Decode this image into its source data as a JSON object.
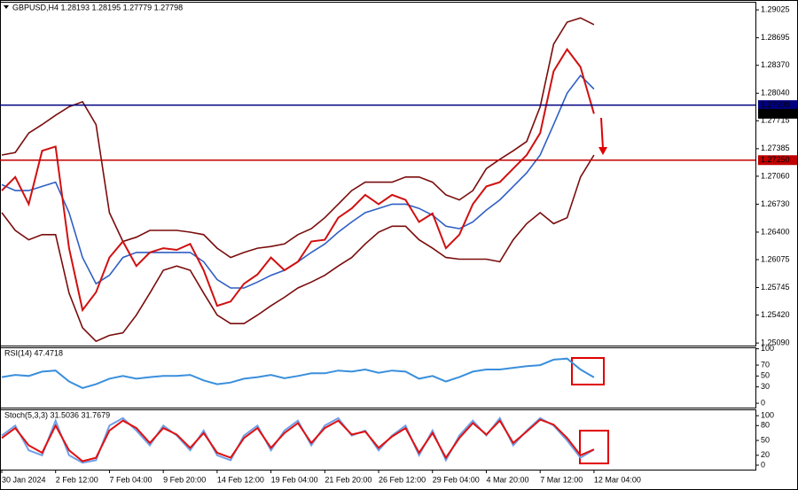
{
  "chart_data": [
    {
      "type": "line",
      "title": "GBPUSD,H4  1.28193 1.28195 1.27779 1.27798",
      "categories": [
        "30 Jan 2024",
        null,
        null,
        null,
        "2 Feb 12:00",
        null,
        null,
        null,
        "7 Feb 04:00",
        null,
        null,
        null,
        "9 Feb 20:00",
        null,
        null,
        null,
        "14 Feb 12:00",
        null,
        null,
        null,
        "19 Feb 04:00",
        null,
        null,
        null,
        "21 Feb 20:00",
        null,
        null,
        null,
        "26 Feb 12:00",
        null,
        null,
        null,
        "29 Feb 04:00",
        null,
        null,
        null,
        "4 Mar 20:00",
        null,
        null,
        null,
        "7 Mar 12:00",
        null,
        null,
        null,
        "12 Mar 04:00"
      ],
      "series": [
        {
          "name": "Upper band",
          "color": "#7a0c0c",
          "values": [
            1.2731,
            1.2734,
            1.2757,
            1.2767,
            1.2778,
            1.2788,
            1.2794,
            1.2767,
            1.2663,
            1.2629,
            1.2634,
            1.2642,
            1.2642,
            1.2642,
            1.264,
            1.2637,
            1.2621,
            1.261,
            1.2616,
            1.2621,
            1.2623,
            1.2626,
            1.2637,
            1.2644,
            1.2657,
            1.2673,
            1.2689,
            1.2699,
            1.2699,
            1.2699,
            1.2705,
            1.2705,
            1.2699,
            1.2684,
            1.2678,
            1.2689,
            1.2715,
            1.2726,
            1.2736,
            1.2747,
            1.2788,
            1.2862,
            1.2888,
            1.2893,
            1.2885
          ]
        },
        {
          "name": "Lower band",
          "color": "#7a0c0c",
          "values": [
            1.2663,
            1.2642,
            1.2631,
            1.2637,
            1.2637,
            1.2568,
            1.2527,
            1.2511,
            1.2518,
            1.2521,
            1.2542,
            1.2568,
            1.2595,
            1.26,
            1.2595,
            1.2568,
            1.2542,
            1.2532,
            1.2532,
            1.2542,
            1.2553,
            1.2563,
            1.2574,
            1.2581,
            1.2589,
            1.26,
            1.261,
            1.2626,
            1.264,
            1.2647,
            1.2647,
            1.2631,
            1.2621,
            1.261,
            1.2608,
            1.2608,
            1.2608,
            1.2605,
            1.2631,
            1.265,
            1.2663,
            1.265,
            1.2657,
            1.2705,
            1.2731
          ]
        },
        {
          "name": "Middle band",
          "color": "#2f5fc4",
          "values": [
            1.2696,
            1.2689,
            1.2689,
            1.2694,
            1.2699,
            1.2663,
            1.261,
            1.2579,
            1.2589,
            1.261,
            1.2616,
            1.2616,
            1.2616,
            1.2616,
            1.2616,
            1.2605,
            1.2584,
            1.2574,
            1.2574,
            1.2581,
            1.2589,
            1.2595,
            1.2605,
            1.2616,
            1.2626,
            1.264,
            1.2652,
            1.2663,
            1.2668,
            1.2673,
            1.2673,
            1.2668,
            1.266,
            1.2647,
            1.2644,
            1.2652,
            1.2666,
            1.2678,
            1.2694,
            1.271,
            1.2731,
            1.2767,
            1.2804,
            1.2825,
            1.2809
          ]
        },
        {
          "name": "Close",
          "color": "#d01010",
          "values": [
            1.2689,
            1.2705,
            1.2673,
            1.2736,
            1.2741,
            1.2621,
            1.2548,
            1.2569,
            1.261,
            1.2629,
            1.26,
            1.2616,
            1.2621,
            1.2619,
            1.2626,
            1.2595,
            1.2553,
            1.2558,
            1.2579,
            1.259,
            1.261,
            1.2595,
            1.2605,
            1.2629,
            1.2631,
            1.2657,
            1.2668,
            1.2684,
            1.2673,
            1.2684,
            1.2678,
            1.2652,
            1.2662,
            1.2621,
            1.2637,
            1.2673,
            1.2694,
            1.2699,
            1.2715,
            1.2731,
            1.2757,
            1.283,
            1.2856,
            1.2835,
            1.27798
          ]
        }
      ],
      "ylim": [
        1.2506,
        1.2911
      ],
      "yticks": [
        1.29025,
        1.28695,
        {
          "value": 1.2837,
          "label": "1.28370"
        },
        {
          "value": 1.2804,
          "label": "1.28040"
        },
        1.27715,
        1.27385,
        {
          "value": 1.2706,
          "label": "1.27060"
        },
        {
          "value": 1.2673,
          "label": "1.26730"
        },
        {
          "value": 1.264,
          "label": "1.26400"
        },
        1.26075,
        1.25745,
        {
          "value": 1.2542,
          "label": "1.25420"
        },
        {
          "value": 1.2509,
          "label": "1.25090"
        }
      ],
      "levels": [
        {
          "value": 1.279,
          "label": "1.27900",
          "color": "#000080"
        },
        {
          "value": 1.27798,
          "label": "1.27798",
          "color": "#000000"
        },
        {
          "value": 1.2725,
          "label": "1.27250",
          "color": "#c00000"
        }
      ]
    },
    {
      "type": "line",
      "title": "RSI(14) 47.4718",
      "series": [
        {
          "name": "RSI",
          "color": "#3a8fdc",
          "values": [
            48,
            52,
            50,
            58,
            60,
            40,
            28,
            35,
            45,
            50,
            45,
            48,
            50,
            50,
            52,
            42,
            35,
            38,
            45,
            48,
            52,
            46,
            50,
            55,
            55,
            60,
            58,
            62,
            56,
            60,
            58,
            45,
            50,
            40,
            48,
            58,
            62,
            62,
            65,
            68,
            70,
            80,
            82,
            62,
            47.4718
          ]
        }
      ],
      "ylim": [
        -8,
        101
      ],
      "yticks": [
        100,
        70,
        50,
        30,
        0
      ]
    },
    {
      "type": "line",
      "title": "Stoch(5,3,3) 31.5036 31.7679",
      "series": [
        {
          "name": "Main",
          "color": "#6f9fe6",
          "values": [
            60,
            80,
            30,
            20,
            90,
            20,
            5,
            10,
            80,
            95,
            70,
            40,
            80,
            60,
            30,
            70,
            20,
            10,
            60,
            80,
            30,
            70,
            90,
            40,
            80,
            95,
            60,
            70,
            30,
            60,
            80,
            20,
            70,
            10,
            60,
            90,
            60,
            95,
            40,
            70,
            95,
            80,
            50,
            15,
            31.5036
          ]
        },
        {
          "name": "Signal",
          "color": "#e01010",
          "values": [
            55,
            75,
            40,
            25,
            80,
            30,
            8,
            15,
            70,
            90,
            75,
            45,
            75,
            62,
            35,
            65,
            25,
            15,
            55,
            75,
            35,
            65,
            85,
            45,
            75,
            90,
            62,
            68,
            35,
            58,
            75,
            25,
            65,
            15,
            55,
            85,
            62,
            90,
            45,
            68,
            92,
            82,
            55,
            20,
            31.7679
          ]
        }
      ],
      "ylim": [
        -9,
        111
      ],
      "yticks": [
        100,
        80,
        50,
        20,
        0
      ]
    }
  ]
}
